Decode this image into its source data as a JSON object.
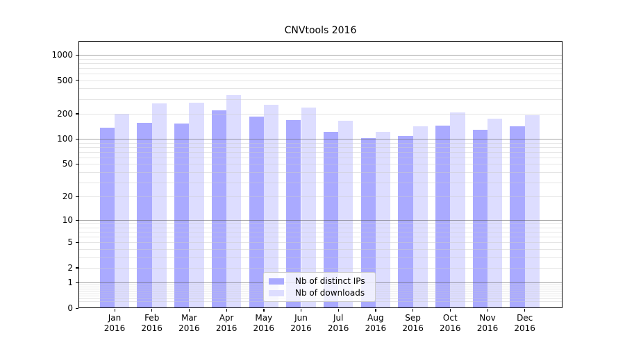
{
  "chart_data": {
    "type": "bar",
    "title": "CNVtools 2016",
    "scale": "log1p",
    "ylim": [
      0,
      1450
    ],
    "yticks": [
      0,
      1,
      2,
      5,
      10,
      20,
      50,
      100,
      200,
      500,
      1000
    ],
    "grid": "both",
    "legend_position": "lower center",
    "categories": [
      "Jan 2016",
      "Feb 2016",
      "Mar 2016",
      "Apr 2016",
      "May 2016",
      "Jun 2016",
      "Jul 2016",
      "Aug 2016",
      "Sep 2016",
      "Oct 2016",
      "Nov 2016",
      "Dec 2016"
    ],
    "series": [
      {
        "key": "distinct-ips",
        "name": "Nb of distinct IPs",
        "color": "#aaaaff",
        "values": [
          136,
          157,
          152,
          218,
          184,
          167,
          122,
          102,
          108,
          145,
          128,
          141
        ]
      },
      {
        "key": "downloads",
        "name": "Nb of downloads",
        "color": "#ddddff",
        "values": [
          200,
          265,
          272,
          335,
          255,
          238,
          166,
          122,
          143,
          208,
          176,
          193
        ]
      }
    ]
  }
}
